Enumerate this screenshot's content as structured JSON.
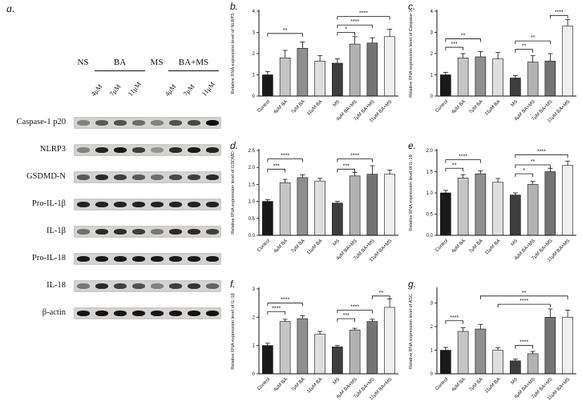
{
  "figure": {
    "background": "#ffffff"
  },
  "colors": {
    "bar_palette": [
      "#1a1a1a",
      "#c6c6c6",
      "#8f8f8f",
      "#dedede",
      "#3d3d3d",
      "#b2b2b2",
      "#747474",
      "#efefef"
    ],
    "strip": "#d6d4d1",
    "axis": "#111111"
  },
  "categories": [
    "Control",
    "4μM BA",
    "7μM BA",
    "11μM BA",
    "MS",
    "4μM BA+MS",
    "7μM BA+MS",
    "11μM BA+MS"
  ],
  "panel_a": {
    "label": "a.",
    "groups": [
      {
        "label": "NS",
        "lanes": [
          0,
          0
        ],
        "underline": false
      },
      {
        "label": "BA",
        "lanes": [
          1,
          3
        ],
        "underline": true
      },
      {
        "label": "MS",
        "lanes": [
          4,
          4
        ],
        "underline": false
      },
      {
        "label": "BA+MS",
        "lanes": [
          5,
          7
        ],
        "underline": true
      }
    ],
    "conc_labels": [
      {
        "text": "4μM",
        "lane": 1
      },
      {
        "text": "7μM",
        "lane": 2
      },
      {
        "text": "11μM",
        "lane": 3
      },
      {
        "text": "4μM",
        "lane": 5
      },
      {
        "text": "7μM",
        "lane": 6
      },
      {
        "text": "11μM",
        "lane": 7
      }
    ],
    "rows": [
      {
        "label": "Caspase-1 p20",
        "bands": [
          0.35,
          0.55,
          0.6,
          0.45,
          0.35,
          0.6,
          0.65,
          0.95
        ]
      },
      {
        "label": "NLRP3",
        "bands": [
          0.35,
          0.85,
          0.9,
          0.7,
          0.25,
          0.8,
          0.9,
          0.85
        ]
      },
      {
        "label": "GSDMD-N",
        "bands": [
          0.55,
          0.8,
          0.7,
          0.55,
          0.45,
          0.65,
          0.7,
          0.8
        ]
      },
      {
        "label": "Pro-IL-1β",
        "bands": [
          0.85,
          0.85,
          0.85,
          0.85,
          0.85,
          0.85,
          0.85,
          0.85
        ]
      },
      {
        "label": "IL-1β",
        "bands": [
          0.45,
          0.8,
          0.8,
          0.7,
          0.4,
          0.8,
          0.8,
          0.7
        ]
      },
      {
        "label": "Pro-IL-18",
        "bands": [
          0.9,
          0.9,
          0.9,
          0.9,
          0.9,
          0.9,
          0.9,
          0.9
        ]
      },
      {
        "label": "IL-18",
        "bands": [
          0.4,
          0.8,
          0.7,
          0.6,
          0.35,
          0.7,
          0.75,
          0.5
        ]
      },
      {
        "label": "β-actin",
        "bands": [
          0.92,
          0.92,
          0.92,
          0.92,
          0.92,
          0.92,
          0.92,
          0.92
        ]
      }
    ]
  },
  "chart_data": {
    "note": "see charts array",
    "type": "bar"
  },
  "charts": [
    {
      "id": "b",
      "label": "b.",
      "type": "bar",
      "ylabel": "Relative RNA expression level of NLRP3",
      "ylim": [
        0,
        4
      ],
      "yticks": [
        0,
        1,
        2,
        3,
        4
      ],
      "ytick_labels": [
        "0",
        "1",
        "2",
        "3",
        "4"
      ],
      "values": [
        1.0,
        1.8,
        2.25,
        1.65,
        1.55,
        2.45,
        2.5,
        2.8
      ],
      "errors": [
        0.15,
        0.35,
        0.3,
        0.25,
        0.2,
        0.35,
        0.25,
        0.35
      ],
      "sig": [
        {
          "from": 0,
          "to": 2,
          "label": "**",
          "y": 2.95
        },
        {
          "from": 4,
          "to": 5,
          "label": "*",
          "y": 3.0
        },
        {
          "from": 4,
          "to": 6,
          "label": "****",
          "y": 3.35
        },
        {
          "from": 4,
          "to": 7,
          "label": "****",
          "y": 3.75
        }
      ]
    },
    {
      "id": "c",
      "label": "c.",
      "type": "bar",
      "ylabel": "Relative RNA expression level of Caspase-1",
      "ylim": [
        0,
        4
      ],
      "yticks": [
        0,
        1,
        2,
        3,
        4
      ],
      "ytick_labels": [
        "0",
        "1",
        "2",
        "3",
        "4"
      ],
      "values": [
        1.0,
        1.8,
        1.85,
        1.75,
        0.85,
        1.6,
        1.65,
        3.3
      ],
      "errors": [
        0.12,
        0.2,
        0.25,
        0.3,
        0.12,
        0.3,
        0.35,
        0.3
      ],
      "sig": [
        {
          "from": 0,
          "to": 1,
          "label": "***",
          "y": 2.3
        },
        {
          "from": 0,
          "to": 2,
          "label": "**",
          "y": 2.7
        },
        {
          "from": 4,
          "to": 5,
          "label": "**",
          "y": 2.2
        },
        {
          "from": 4,
          "to": 6,
          "label": "**",
          "y": 2.6
        },
        {
          "from": 6,
          "to": 7,
          "label": "****",
          "y": 3.8
        }
      ]
    },
    {
      "id": "d",
      "label": "d.",
      "type": "bar",
      "ylabel": "Relative RNA expression level of GSDMD",
      "ylim": [
        0,
        2.5
      ],
      "yticks": [
        0,
        0.5,
        1.0,
        1.5,
        2.0,
        2.5
      ],
      "ytick_labels": [
        "0.0",
        "0.5",
        "1.0",
        "1.5",
        "2.0",
        "2.5"
      ],
      "values": [
        1.0,
        1.55,
        1.7,
        1.6,
        0.95,
        1.75,
        1.8,
        1.8
      ],
      "errors": [
        0.05,
        0.1,
        0.08,
        0.08,
        0.05,
        0.1,
        0.25,
        0.12
      ],
      "sig": [
        {
          "from": 0,
          "to": 1,
          "label": "***",
          "y": 1.95
        },
        {
          "from": 0,
          "to": 2,
          "label": "****",
          "y": 2.25
        },
        {
          "from": 4,
          "to": 5,
          "label": "***",
          "y": 1.95
        },
        {
          "from": 4,
          "to": 6,
          "label": "****",
          "y": 2.25
        }
      ]
    },
    {
      "id": "e",
      "label": "e.",
      "type": "bar",
      "ylabel": "Relative RNA expression level of IL-18",
      "ylim": [
        0,
        2.0
      ],
      "yticks": [
        0,
        0.5,
        1.0,
        1.5,
        2.0
      ],
      "ytick_labels": [
        "0.0",
        "0.5",
        "1.0",
        "1.5",
        "2.0"
      ],
      "values": [
        1.0,
        1.35,
        1.45,
        1.25,
        0.95,
        1.2,
        1.5,
        1.65
      ],
      "errors": [
        0.06,
        0.08,
        0.07,
        0.09,
        0.05,
        0.07,
        0.08,
        0.1
      ],
      "sig": [
        {
          "from": 0,
          "to": 1,
          "label": "**",
          "y": 1.58
        },
        {
          "from": 0,
          "to": 2,
          "label": "****",
          "y": 1.78
        },
        {
          "from": 4,
          "to": 5,
          "label": "*",
          "y": 1.45
        },
        {
          "from": 4,
          "to": 6,
          "label": "**",
          "y": 1.66
        },
        {
          "from": 4,
          "to": 7,
          "label": "****",
          "y": 1.9
        }
      ]
    },
    {
      "id": "f",
      "label": "f.",
      "type": "bar",
      "ylabel": "Relative RNA expression level of IL-1β",
      "ylim": [
        0,
        3
      ],
      "yticks": [
        0,
        1,
        2,
        3
      ],
      "ytick_labels": [
        "0",
        "1",
        "2",
        "3"
      ],
      "values": [
        1.0,
        1.85,
        1.95,
        1.4,
        0.95,
        1.55,
        1.85,
        2.35
      ],
      "errors": [
        0.08,
        0.08,
        0.1,
        0.1,
        0.05,
        0.06,
        0.08,
        0.3
      ],
      "sig": [
        {
          "from": 0,
          "to": 1,
          "label": "****",
          "y": 2.2
        },
        {
          "from": 0,
          "to": 2,
          "label": "****",
          "y": 2.5
        },
        {
          "from": 4,
          "to": 5,
          "label": "***",
          "y": 1.95
        },
        {
          "from": 4,
          "to": 6,
          "label": "****",
          "y": 2.25
        },
        {
          "from": 6,
          "to": 7,
          "label": "**",
          "y": 2.75
        }
      ]
    },
    {
      "id": "g",
      "label": "g.",
      "type": "bar",
      "ylabel": "Relative RNA expression level of ASC",
      "ylim": [
        0,
        3.6
      ],
      "yticks": [
        0,
        1,
        2,
        3
      ],
      "ytick_labels": [
        "0",
        "1",
        "2",
        "3"
      ],
      "values": [
        1.0,
        1.8,
        1.9,
        1.0,
        0.55,
        0.85,
        2.4,
        2.4
      ],
      "errors": [
        0.12,
        0.15,
        0.2,
        0.1,
        0.07,
        0.1,
        0.35,
        0.3
      ],
      "sig": [
        {
          "from": 0,
          "to": 1,
          "label": "****",
          "y": 2.25
        },
        {
          "from": 4,
          "to": 5,
          "label": "****",
          "y": 1.2
        },
        {
          "from": 3,
          "to": 6,
          "label": "****",
          "y": 2.95
        },
        {
          "from": 2,
          "to": 7,
          "label": "**",
          "y": 3.3
        }
      ]
    }
  ]
}
